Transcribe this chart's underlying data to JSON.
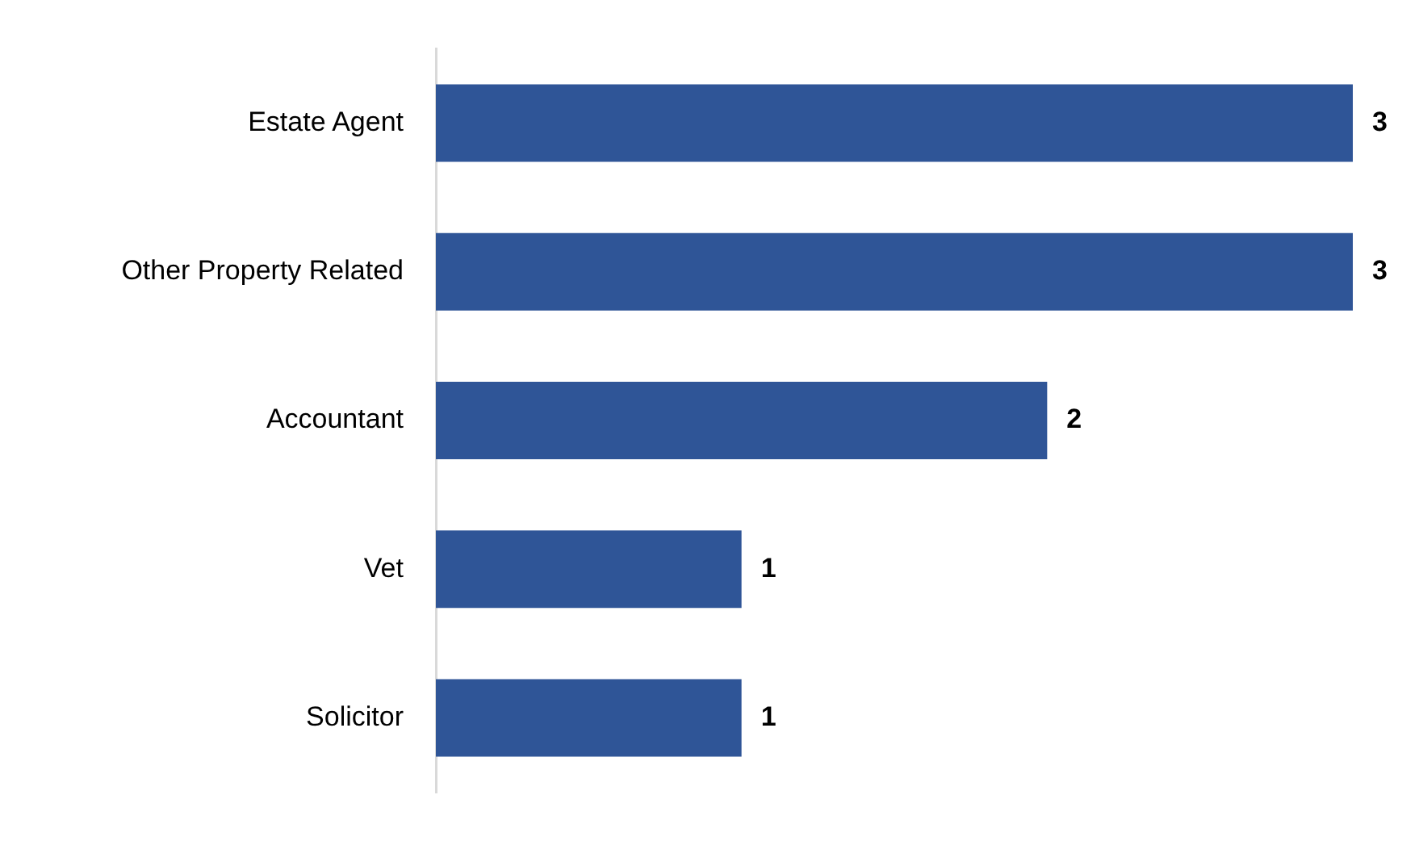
{
  "chart_data": {
    "type": "bar",
    "orientation": "horizontal",
    "categories": [
      "Estate Agent",
      "Other Property Related",
      "Accountant",
      "Vet",
      "Solicitor"
    ],
    "values": [
      3,
      3,
      2,
      1,
      1
    ],
    "color": "#2f5597",
    "xlim": [
      0,
      3
    ],
    "data_labels": true,
    "grid": false,
    "legend": false,
    "tick_labels": "y"
  }
}
